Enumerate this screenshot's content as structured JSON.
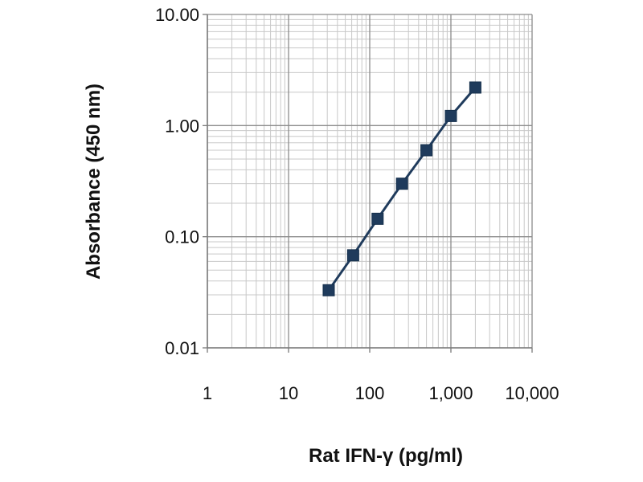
{
  "chart_data": {
    "type": "line",
    "title": "",
    "xlabel": "Rat IFN-γ (pg/ml)",
    "ylabel": "Absorbance (450 nm)",
    "x_scale": "log",
    "y_scale": "log",
    "xlim": [
      1,
      10000
    ],
    "ylim": [
      0.01,
      10
    ],
    "x_ticks": [
      {
        "value": 1,
        "label": "1"
      },
      {
        "value": 10,
        "label": "10"
      },
      {
        "value": 100,
        "label": "100"
      },
      {
        "value": 1000,
        "label": "1,000"
      },
      {
        "value": 10000,
        "label": "10,000"
      }
    ],
    "y_ticks": [
      {
        "value": 0.01,
        "label": "0.01"
      },
      {
        "value": 0.1,
        "label": "0.10"
      },
      {
        "value": 1,
        "label": "1.00"
      },
      {
        "value": 10,
        "label": "10.00"
      }
    ],
    "grid": true,
    "minor_grid": true,
    "series": [
      {
        "x": [
          31.25,
          62.5,
          125,
          250,
          500,
          1000,
          2000
        ],
        "y": [
          0.033,
          0.068,
          0.145,
          0.3,
          0.6,
          1.22,
          2.2
        ],
        "color": "#1f3b5c",
        "marker": "square"
      }
    ]
  }
}
